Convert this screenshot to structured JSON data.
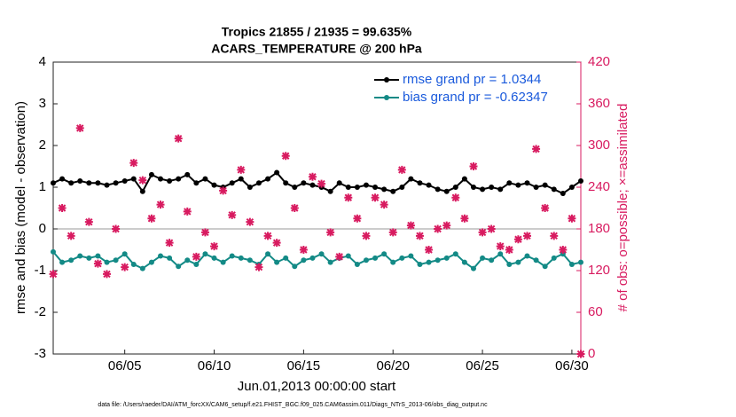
{
  "chart_data": {
    "type": "line",
    "title": [
      "Tropics 21855 / 21935 = 99.635%",
      "ACARS_TEMPERATURE @ 200 hPa"
    ],
    "xlabel": "Jun.01,2013 00:00:00 start",
    "ylabel": "rmse and bias (model - observation)",
    "y2label": "# of obs: o=possible; ×=assimilated",
    "footnote": "data file: /Users/raeder/DAI/ATM_forcXX/CAM6_setup/f.e21.FHIST_BGC.f09_025.CAM6assim.011/Diags_NTrS_2013-06/obs_diag_output.nc",
    "x": [
      1,
      1.5,
      2,
      2.5,
      3,
      3.5,
      4,
      4.5,
      5,
      5.5,
      6,
      6.5,
      7,
      7.5,
      8,
      8.5,
      9,
      9.5,
      10,
      10.5,
      11,
      11.5,
      12,
      12.5,
      13,
      13.5,
      14,
      14.5,
      15,
      15.5,
      16,
      16.5,
      17,
      17.5,
      18,
      18.5,
      19,
      19.5,
      20,
      20.5,
      21,
      21.5,
      22,
      22.5,
      23,
      23.5,
      24,
      24.5,
      25,
      25.5,
      26,
      26.5,
      27,
      27.5,
      28,
      28.5,
      29,
      29.5,
      30,
      30.5
    ],
    "xlim": [
      1,
      30.5
    ],
    "xticks": [
      {
        "value": 5,
        "label": "06/05"
      },
      {
        "value": 10,
        "label": "06/10"
      },
      {
        "value": 15,
        "label": "06/15"
      },
      {
        "value": 20,
        "label": "06/20"
      },
      {
        "value": 25,
        "label": "06/25"
      },
      {
        "value": 30,
        "label": "06/30"
      }
    ],
    "ylim": [
      -3,
      4
    ],
    "yticks": [
      -3,
      -2,
      -1,
      0,
      1,
      2,
      3,
      4
    ],
    "y2lim": [
      0,
      420
    ],
    "y2ticks": [
      0,
      60,
      120,
      180,
      240,
      300,
      360,
      420
    ],
    "legend": "upper right",
    "zero_line": true,
    "series": [
      {
        "name": "rmse grand pr = 1.0344",
        "color": "#000000",
        "marker": "circle",
        "values": [
          1.1,
          1.2,
          1.1,
          1.15,
          1.1,
          1.1,
          1.05,
          1.1,
          1.15,
          1.2,
          0.9,
          1.3,
          1.2,
          1.15,
          1.2,
          1.3,
          1.1,
          1.2,
          1.05,
          1.0,
          1.1,
          1.2,
          1.0,
          1.1,
          1.2,
          1.35,
          1.1,
          1.0,
          1.1,
          1.05,
          1.0,
          0.9,
          1.1,
          1.0,
          1.0,
          1.05,
          1.0,
          0.95,
          0.9,
          1.0,
          1.2,
          1.1,
          1.05,
          0.95,
          0.9,
          1.0,
          1.2,
          1.0,
          0.95,
          1.0,
          0.95,
          1.1,
          1.05,
          1.1,
          1.0,
          1.05,
          0.95,
          0.85,
          1.0,
          1.15
        ]
      },
      {
        "name": "bias grand pr = -0.62347",
        "color": "#138a86",
        "marker": "circle",
        "values": [
          -0.55,
          -0.8,
          -0.75,
          -0.65,
          -0.7,
          -0.65,
          -0.8,
          -0.75,
          -0.6,
          -0.85,
          -0.95,
          -0.8,
          -0.65,
          -0.7,
          -0.9,
          -0.75,
          -0.85,
          -0.6,
          -0.7,
          -0.8,
          -0.65,
          -0.7,
          -0.75,
          -0.85,
          -0.6,
          -0.8,
          -0.7,
          -0.9,
          -0.75,
          -0.7,
          -0.6,
          -0.8,
          -0.7,
          -0.65,
          -0.85,
          -0.75,
          -0.7,
          -0.6,
          -0.8,
          -0.7,
          -0.65,
          -0.85,
          -0.8,
          -0.75,
          -0.7,
          -0.6,
          -0.8,
          -0.95,
          -0.7,
          -0.75,
          -0.6,
          -0.85,
          -0.8,
          -0.65,
          -0.75,
          -0.9,
          -0.7,
          -0.6,
          -0.85,
          -0.8
        ]
      },
      {
        "color": "#d81b60",
        "marker": "cross",
        "axis": "y2",
        "values": [
          115,
          210,
          170,
          325,
          190,
          130,
          115,
          180,
          125,
          275,
          250,
          195,
          215,
          160,
          310,
          205,
          140,
          175,
          155,
          235,
          200,
          265,
          190,
          125,
          170,
          160,
          285,
          210,
          150,
          255,
          245,
          175,
          140,
          225,
          195,
          170,
          225,
          215,
          175,
          265,
          185,
          170,
          150,
          180,
          185,
          225,
          195,
          270,
          175,
          180,
          155,
          150,
          165,
          170,
          295,
          210,
          170,
          150,
          195,
          0
        ]
      }
    ]
  }
}
